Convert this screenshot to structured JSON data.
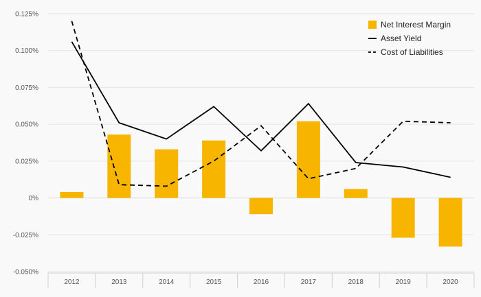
{
  "chart_data": {
    "type": "bar",
    "title": "",
    "xlabel": "",
    "ylabel": "",
    "categories": [
      "2012",
      "2013",
      "2014",
      "2015",
      "2016",
      "2017",
      "2018",
      "2019",
      "2020"
    ],
    "ylim": [
      -0.05,
      0.125
    ],
    "yticks": [
      -0.05,
      -0.025,
      0,
      0.025,
      0.05,
      0.075,
      0.1,
      0.125
    ],
    "ytick_labels": [
      "-0.050%",
      "-0.025%",
      "0%",
      "0.025%",
      "0.050%",
      "0.075%",
      "0.100%",
      "0.125%"
    ],
    "grid": true,
    "legend_position": "top-right",
    "series": [
      {
        "name": "Net Interest Margin",
        "kind": "bar",
        "color": "#f7b500",
        "values": [
          0.004,
          0.043,
          0.033,
          0.039,
          -0.011,
          0.052,
          0.006,
          -0.027,
          -0.033
        ]
      },
      {
        "name": "Asset Yield",
        "kind": "line",
        "style": "solid",
        "color": "#000000",
        "values": [
          0.106,
          0.051,
          0.04,
          0.062,
          0.032,
          0.064,
          0.024,
          0.021,
          0.014
        ]
      },
      {
        "name": "Cost of Liabilities",
        "kind": "line",
        "style": "dashed",
        "color": "#000000",
        "values": [
          0.12,
          0.009,
          0.008,
          0.025,
          0.049,
          0.013,
          0.02,
          0.052,
          0.051
        ]
      }
    ]
  }
}
